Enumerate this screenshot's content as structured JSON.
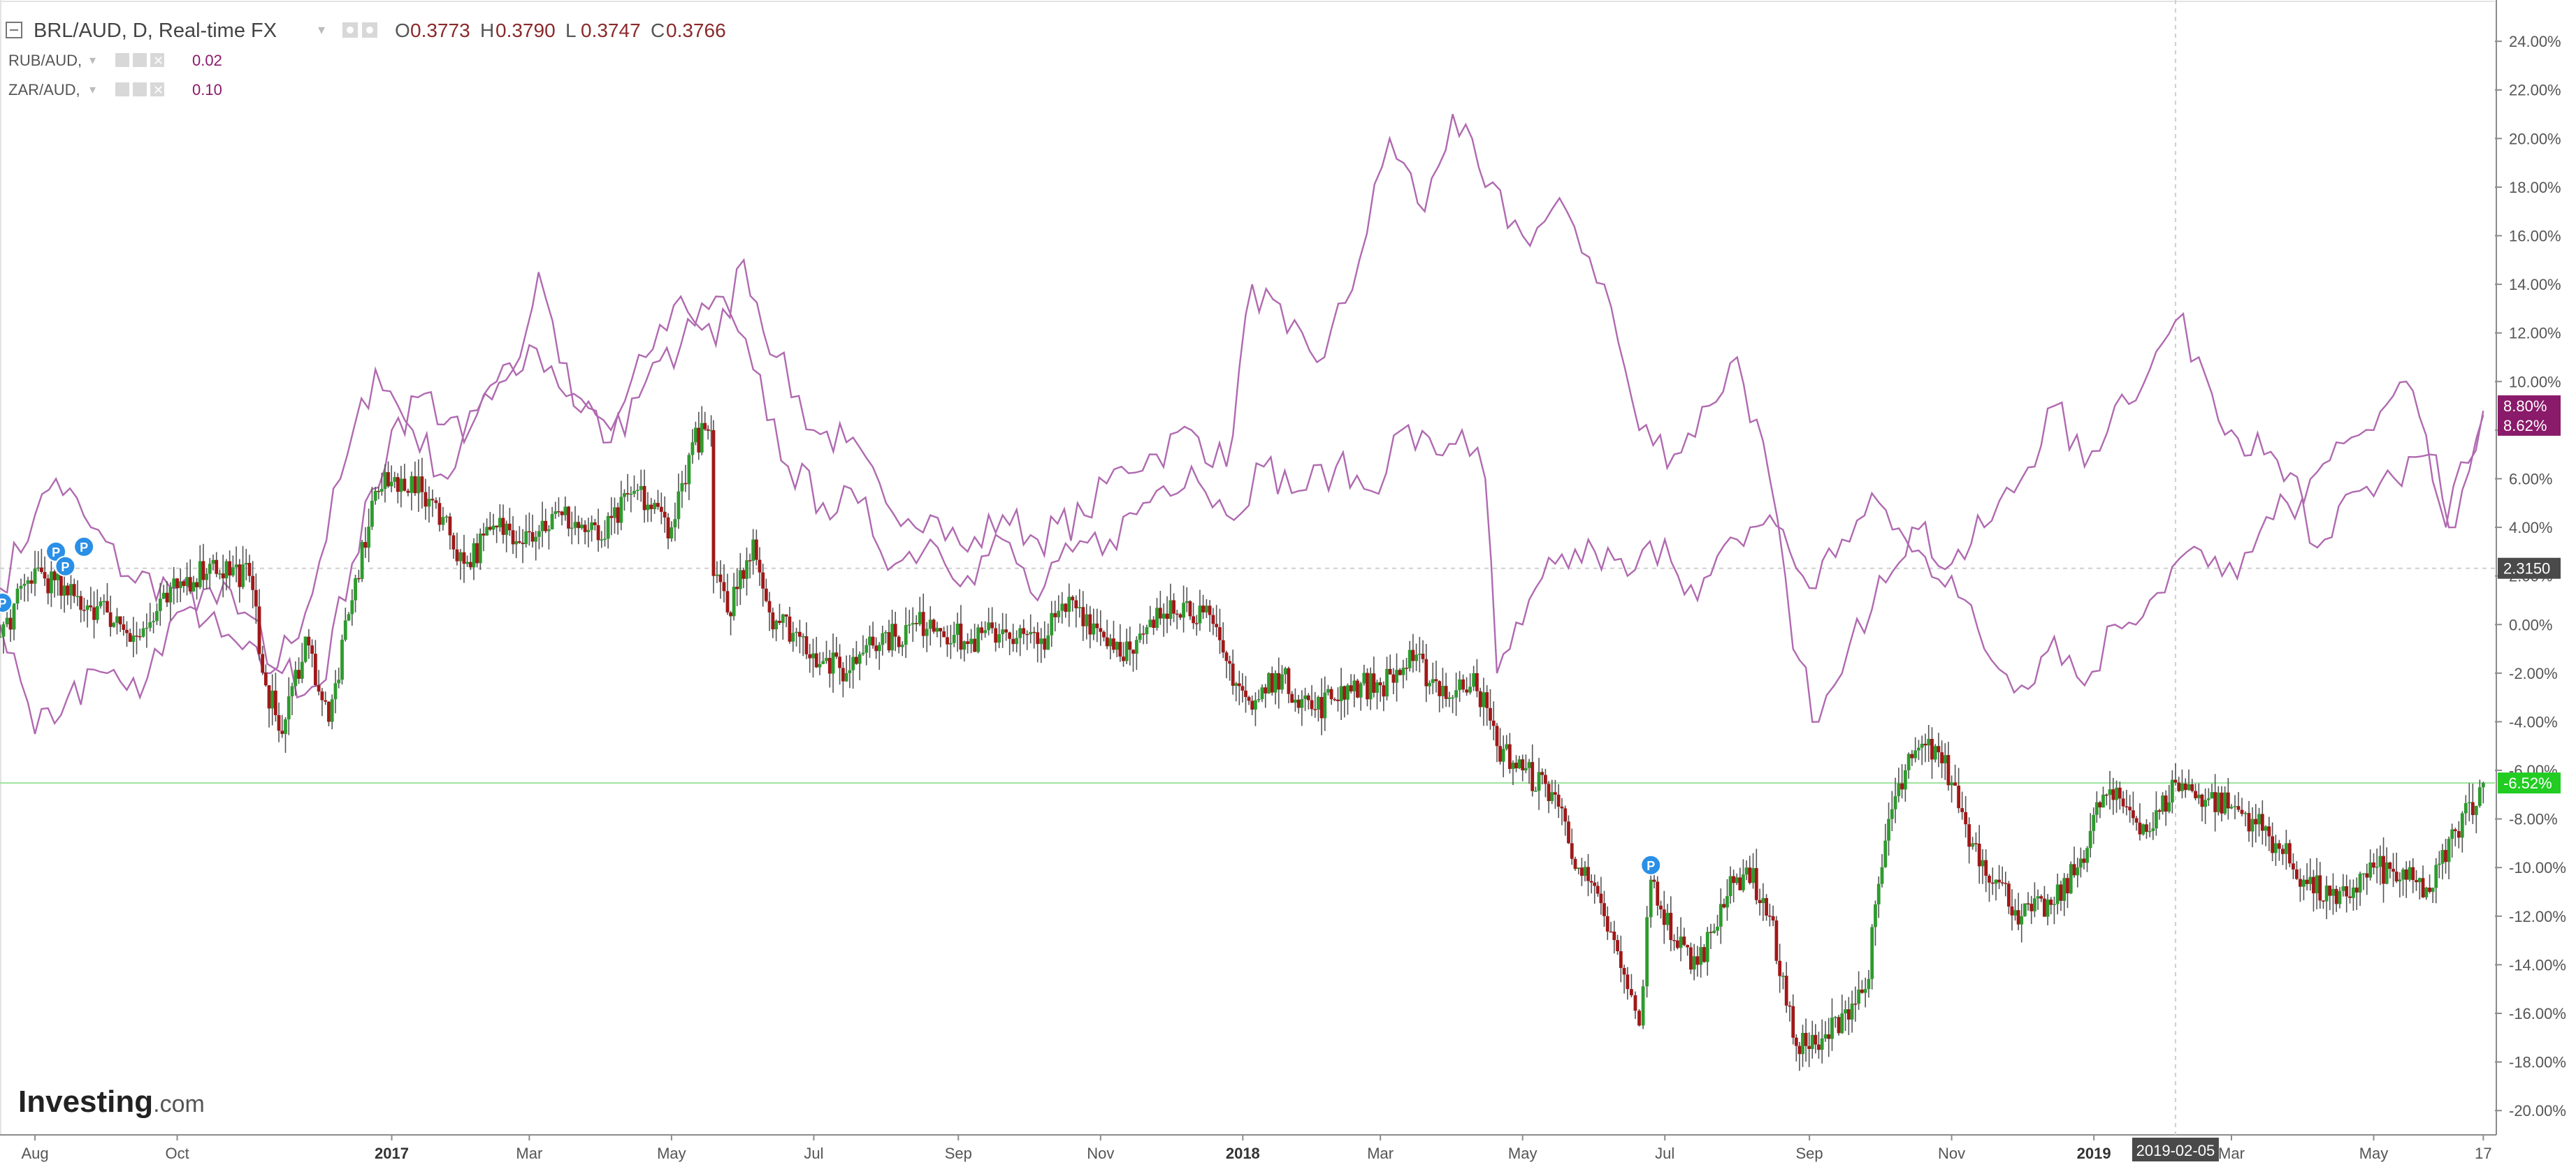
{
  "header": {
    "collapse_icon": "minus-box-icon",
    "main_symbol": "BRL/AUD, D, Real-time FX",
    "ohlc": [
      {
        "label": "O",
        "value": "0.3773"
      },
      {
        "label": "H",
        "value": "0.3790"
      },
      {
        "label": "L",
        "value": "0.3747"
      },
      {
        "label": "C",
        "value": "0.3766"
      }
    ],
    "compare": [
      {
        "symbol": "RUB/AUD,",
        "value": "0.02"
      },
      {
        "symbol": "ZAR/AUD,",
        "value": "0.10"
      }
    ]
  },
  "brand": {
    "name": "Investing",
    "suffix": ".com"
  },
  "badges": {
    "crosshair_value": "2.3150",
    "rub_last": "8.80%",
    "zar_last": "8.62%",
    "brl_last": "-6.52%",
    "crosshair_date": "2019-02-05"
  },
  "colors": {
    "up": "#2e9b2e",
    "down": "#a01818",
    "compare_line": "#b06ab0",
    "compare_badge": "#8a1a6a",
    "last_badge": "#22cc22",
    "marker": "#2a8fe6"
  },
  "markers": [
    {
      "label": "P",
      "date": "2016-07-18",
      "y": 0.9
    },
    {
      "label": "P",
      "date": "2016-08-10",
      "y": 3.0
    },
    {
      "label": "P",
      "date": "2016-08-14",
      "y": 2.4
    },
    {
      "label": "P",
      "date": "2016-08-22",
      "y": 3.2
    },
    {
      "label": "P",
      "date": "2018-06-25",
      "y": -9.9
    }
  ],
  "chart_data": {
    "type": "line",
    "x_axis": {
      "start": "2016-07-17",
      "end": "2019-06-19",
      "tick_labels": [
        {
          "label": "Aug",
          "date": "2016-08-01"
        },
        {
          "label": "Oct",
          "date": "2016-10-01"
        },
        {
          "label": "2017",
          "date": "2017-01-01"
        },
        {
          "label": "Mar",
          "date": "2017-03-01"
        },
        {
          "label": "May",
          "date": "2017-05-01"
        },
        {
          "label": "Jul",
          "date": "2017-07-01"
        },
        {
          "label": "Sep",
          "date": "2017-09-01"
        },
        {
          "label": "Nov",
          "date": "2017-11-01"
        },
        {
          "label": "2018",
          "date": "2018-01-01"
        },
        {
          "label": "Mar",
          "date": "2018-03-01"
        },
        {
          "label": "May",
          "date": "2018-05-01"
        },
        {
          "label": "Jul",
          "date": "2018-07-01"
        },
        {
          "label": "Sep",
          "date": "2018-09-01"
        },
        {
          "label": "Nov",
          "date": "2018-11-01"
        },
        {
          "label": "2019",
          "date": "2019-01-01"
        },
        {
          "label": "Mar",
          "date": "2019-03-01"
        },
        {
          "label": "May",
          "date": "2019-05-01"
        },
        {
          "label": "17",
          "date": "2019-06-17"
        }
      ]
    },
    "y_axis": {
      "unit": "%",
      "ylim": [
        -21.0,
        25.7
      ],
      "ticks": [
        24,
        22,
        20,
        18,
        16,
        14,
        12,
        10,
        8,
        6,
        4,
        2,
        0,
        -2,
        -4,
        -6,
        -8,
        -10,
        -12,
        -14,
        -16,
        -18,
        -20
      ]
    },
    "grid": false,
    "crosshair": {
      "date": "2019-02-05",
      "y": 2.315
    },
    "last_price_line": -6.52,
    "series": [
      {
        "name": "BRL/AUD",
        "style": "candles",
        "points": [
          [
            "2016-07-17",
            -0.5
          ],
          [
            "2016-08-01",
            2.3
          ],
          [
            "2016-08-15",
            1.2
          ],
          [
            "2016-09-01",
            0.5
          ],
          [
            "2016-09-15",
            -0.5
          ],
          [
            "2016-10-01",
            1.5
          ],
          [
            "2016-10-15",
            2.5
          ],
          [
            "2016-11-01",
            2.0
          ],
          [
            "2016-11-08",
            -2.5
          ],
          [
            "2016-11-15",
            -4.5
          ],
          [
            "2016-11-25",
            -0.5
          ],
          [
            "2016-12-05",
            -4.0
          ],
          [
            "2016-12-15",
            1.0
          ],
          [
            "2016-12-25",
            5.5
          ],
          [
            "2017-01-05",
            6.0
          ],
          [
            "2017-01-20",
            5.0
          ],
          [
            "2017-02-01",
            2.5
          ],
          [
            "2017-02-15",
            4.0
          ],
          [
            "2017-03-01",
            3.8
          ],
          [
            "2017-03-15",
            4.5
          ],
          [
            "2017-04-01",
            3.5
          ],
          [
            "2017-04-15",
            5.5
          ],
          [
            "2017-05-01",
            4.0
          ],
          [
            "2017-05-10",
            7.5
          ],
          [
            "2017-05-18",
            8.0
          ],
          [
            "2017-05-19",
            2.0
          ],
          [
            "2017-05-25",
            0.5
          ],
          [
            "2017-06-05",
            3.5
          ],
          [
            "2017-06-12",
            0.5
          ],
          [
            "2017-06-25",
            -0.5
          ],
          [
            "2017-07-05",
            -1.5
          ],
          [
            "2017-07-15",
            -2.0
          ],
          [
            "2017-07-25",
            -0.5
          ],
          [
            "2017-08-05",
            -0.5
          ],
          [
            "2017-08-20",
            0.2
          ],
          [
            "2017-09-05",
            -0.8
          ],
          [
            "2017-09-20",
            -0.2
          ],
          [
            "2017-10-05",
            -0.8
          ],
          [
            "2017-10-20",
            1.0
          ],
          [
            "2017-11-01",
            -0.3
          ],
          [
            "2017-11-15",
            -1.2
          ],
          [
            "2017-12-01",
            1.0
          ],
          [
            "2017-12-15",
            0.5
          ],
          [
            "2017-12-25",
            -1.5
          ],
          [
            "2018-01-05",
            -3.5
          ],
          [
            "2018-01-15",
            -2.0
          ],
          [
            "2018-02-01",
            -3.5
          ],
          [
            "2018-02-15",
            -2.5
          ],
          [
            "2018-03-01",
            -2.5
          ],
          [
            "2018-03-15",
            -1.5
          ],
          [
            "2018-04-01",
            -3.0
          ],
          [
            "2018-04-10",
            -2.0
          ],
          [
            "2018-04-20",
            -5.0
          ],
          [
            "2018-05-01",
            -6.0
          ],
          [
            "2018-05-15",
            -7.0
          ],
          [
            "2018-05-25",
            -10.0
          ],
          [
            "2018-06-05",
            -12.0
          ],
          [
            "2018-06-15",
            -15.0
          ],
          [
            "2018-06-20",
            -16.5
          ],
          [
            "2018-06-25",
            -10.5
          ],
          [
            "2018-07-05",
            -13.0
          ],
          [
            "2018-07-15",
            -14.0
          ],
          [
            "2018-07-25",
            -11.5
          ],
          [
            "2018-08-05",
            -10.0
          ],
          [
            "2018-08-15",
            -12.0
          ],
          [
            "2018-08-25",
            -17.0
          ],
          [
            "2018-09-05",
            -17.5
          ],
          [
            "2018-09-15",
            -16.0
          ],
          [
            "2018-09-25",
            -15.0
          ],
          [
            "2018-10-05",
            -8.0
          ],
          [
            "2018-10-15",
            -5.5
          ],
          [
            "2018-10-25",
            -5.0
          ],
          [
            "2018-11-01",
            -6.5
          ],
          [
            "2018-11-10",
            -9.0
          ],
          [
            "2018-11-20",
            -10.5
          ],
          [
            "2018-12-01",
            -12.0
          ],
          [
            "2018-12-15",
            -11.5
          ],
          [
            "2018-12-25",
            -10.0
          ],
          [
            "2019-01-05",
            -7.0
          ],
          [
            "2019-01-15",
            -7.5
          ],
          [
            "2019-01-25",
            -8.5
          ],
          [
            "2019-02-05",
            -6.5
          ],
          [
            "2019-02-15",
            -7.0
          ],
          [
            "2019-03-01",
            -7.5
          ],
          [
            "2019-03-10",
            -8.0
          ],
          [
            "2019-03-20",
            -9.0
          ],
          [
            "2019-04-01",
            -10.5
          ],
          [
            "2019-04-15",
            -11.5
          ],
          [
            "2019-05-01",
            -10.0
          ],
          [
            "2019-05-15",
            -10.5
          ],
          [
            "2019-05-25",
            -11.0
          ],
          [
            "2019-06-05",
            -8.5
          ],
          [
            "2019-06-17",
            -6.52
          ]
        ]
      },
      {
        "name": "RUB/AUD",
        "style": "line",
        "points": [
          [
            "2016-07-17",
            1.5
          ],
          [
            "2016-08-01",
            4.5
          ],
          [
            "2016-08-10",
            6.0
          ],
          [
            "2016-08-25",
            4.0
          ],
          [
            "2016-09-10",
            2.0
          ],
          [
            "2016-10-01",
            1.5
          ],
          [
            "2016-10-20",
            -0.5
          ],
          [
            "2016-11-10",
            -2.0
          ],
          [
            "2016-11-25",
            0.5
          ],
          [
            "2016-12-10",
            6.0
          ],
          [
            "2016-12-25",
            10.5
          ],
          [
            "2017-01-10",
            8.0
          ],
          [
            "2017-01-25",
            6.0
          ],
          [
            "2017-02-10",
            9.5
          ],
          [
            "2017-02-25",
            11.0
          ],
          [
            "2017-03-05",
            14.5
          ],
          [
            "2017-03-20",
            9.0
          ],
          [
            "2017-04-05",
            8.0
          ],
          [
            "2017-04-20",
            11.0
          ],
          [
            "2017-05-05",
            13.5
          ],
          [
            "2017-05-20",
            11.5
          ],
          [
            "2017-06-01",
            15.0
          ],
          [
            "2017-06-15",
            11.0
          ],
          [
            "2017-07-01",
            8.0
          ],
          [
            "2017-07-15",
            7.5
          ],
          [
            "2017-08-01",
            5.0
          ],
          [
            "2017-08-20",
            4.5
          ],
          [
            "2017-09-05",
            3.0
          ],
          [
            "2017-09-20",
            4.5
          ],
          [
            "2017-10-05",
            3.5
          ],
          [
            "2017-10-25",
            4.5
          ],
          [
            "2017-11-10",
            6.5
          ],
          [
            "2017-11-25",
            7.0
          ],
          [
            "2017-12-10",
            8.0
          ],
          [
            "2017-12-25",
            6.5
          ],
          [
            "2018-01-05",
            14.0
          ],
          [
            "2018-01-20",
            12.0
          ],
          [
            "2018-02-05",
            11.0
          ],
          [
            "2018-02-20",
            15.0
          ],
          [
            "2018-03-05",
            20.0
          ],
          [
            "2018-03-20",
            17.0
          ],
          [
            "2018-04-01",
            21.0
          ],
          [
            "2018-04-15",
            18.0
          ],
          [
            "2018-05-01",
            16.0
          ],
          [
            "2018-05-20",
            17.0
          ],
          [
            "2018-06-05",
            14.0
          ],
          [
            "2018-06-20",
            8.0
          ],
          [
            "2018-07-05",
            7.0
          ],
          [
            "2018-07-20",
            9.0
          ],
          [
            "2018-08-01",
            11.0
          ],
          [
            "2018-08-15",
            6.0
          ],
          [
            "2018-08-25",
            -1.0
          ],
          [
            "2018-09-05",
            -4.0
          ],
          [
            "2018-09-15",
            -2.0
          ],
          [
            "2018-10-01",
            2.0
          ],
          [
            "2018-10-15",
            4.0
          ],
          [
            "2018-11-01",
            2.5
          ],
          [
            "2018-11-15",
            4.0
          ],
          [
            "2018-12-01",
            6.0
          ],
          [
            "2018-12-15",
            9.0
          ],
          [
            "2018-12-28",
            6.5
          ],
          [
            "2019-01-10",
            9.0
          ],
          [
            "2019-01-25",
            10.5
          ],
          [
            "2019-02-05",
            12.5
          ],
          [
            "2019-02-15",
            11.0
          ],
          [
            "2019-03-01",
            8.0
          ],
          [
            "2019-03-15",
            7.0
          ],
          [
            "2019-04-01",
            5.0
          ],
          [
            "2019-04-15",
            7.5
          ],
          [
            "2019-05-01",
            8.0
          ],
          [
            "2019-05-15",
            10.0
          ],
          [
            "2019-06-01",
            4.0
          ],
          [
            "2019-06-17",
            8.8
          ]
        ]
      },
      {
        "name": "ZAR/AUD",
        "style": "line",
        "points": [
          [
            "2016-07-17",
            0.0
          ],
          [
            "2016-08-01",
            -4.5
          ],
          [
            "2016-08-15",
            -3.0
          ],
          [
            "2016-09-01",
            -2.0
          ],
          [
            "2016-09-15",
            -3.0
          ],
          [
            "2016-10-01",
            0.5
          ],
          [
            "2016-10-15",
            1.5
          ],
          [
            "2016-10-30",
            0.5
          ],
          [
            "2016-11-15",
            -2.0
          ],
          [
            "2016-12-01",
            -2.5
          ],
          [
            "2016-12-15",
            2.5
          ],
          [
            "2017-01-01",
            8.0
          ],
          [
            "2017-01-15",
            9.5
          ],
          [
            "2017-02-01",
            7.5
          ],
          [
            "2017-02-15",
            10.0
          ],
          [
            "2017-03-01",
            11.5
          ],
          [
            "2017-03-20",
            9.5
          ],
          [
            "2017-04-05",
            7.5
          ],
          [
            "2017-04-20",
            10.0
          ],
          [
            "2017-05-05",
            11.5
          ],
          [
            "2017-05-20",
            13.5
          ],
          [
            "2017-06-05",
            10.5
          ],
          [
            "2017-06-20",
            6.5
          ],
          [
            "2017-07-05",
            5.0
          ],
          [
            "2017-07-20",
            5.0
          ],
          [
            "2017-08-05",
            2.5
          ],
          [
            "2017-08-20",
            3.5
          ],
          [
            "2017-09-05",
            2.0
          ],
          [
            "2017-09-20",
            3.5
          ],
          [
            "2017-10-05",
            1.0
          ],
          [
            "2017-10-20",
            3.0
          ],
          [
            "2017-11-05",
            3.5
          ],
          [
            "2017-11-25",
            5.5
          ],
          [
            "2017-12-10",
            6.5
          ],
          [
            "2017-12-25",
            4.5
          ],
          [
            "2018-01-10",
            6.5
          ],
          [
            "2018-01-25",
            5.5
          ],
          [
            "2018-02-10",
            6.5
          ],
          [
            "2018-02-25",
            5.5
          ],
          [
            "2018-03-10",
            8.0
          ],
          [
            "2018-03-25",
            7.0
          ],
          [
            "2018-04-05",
            8.0
          ],
          [
            "2018-04-15",
            6.0
          ],
          [
            "2018-04-20",
            -2.0
          ],
          [
            "2018-05-01",
            0.0
          ],
          [
            "2018-05-15",
            2.5
          ],
          [
            "2018-06-01",
            3.0
          ],
          [
            "2018-06-15",
            2.0
          ],
          [
            "2018-07-01",
            3.5
          ],
          [
            "2018-07-15",
            1.0
          ],
          [
            "2018-08-01",
            3.5
          ],
          [
            "2018-08-15",
            4.5
          ],
          [
            "2018-09-01",
            1.5
          ],
          [
            "2018-09-15",
            3.5
          ],
          [
            "2018-10-01",
            5.0
          ],
          [
            "2018-10-15",
            3.0
          ],
          [
            "2018-11-01",
            2.0
          ],
          [
            "2018-11-15",
            -1.0
          ],
          [
            "2018-12-01",
            -2.5
          ],
          [
            "2018-12-15",
            -0.5
          ],
          [
            "2018-12-28",
            -2.5
          ],
          [
            "2019-01-10",
            0.0
          ],
          [
            "2019-01-25",
            1.0
          ],
          [
            "2019-02-10",
            3.0
          ],
          [
            "2019-02-25",
            2.0
          ],
          [
            "2019-03-10",
            3.0
          ],
          [
            "2019-03-25",
            5.0
          ],
          [
            "2019-04-10",
            3.5
          ],
          [
            "2019-04-25",
            5.5
          ],
          [
            "2019-05-10",
            6.0
          ],
          [
            "2019-05-25",
            7.0
          ],
          [
            "2019-06-05",
            4.0
          ],
          [
            "2019-06-17",
            8.62
          ]
        ]
      }
    ]
  }
}
